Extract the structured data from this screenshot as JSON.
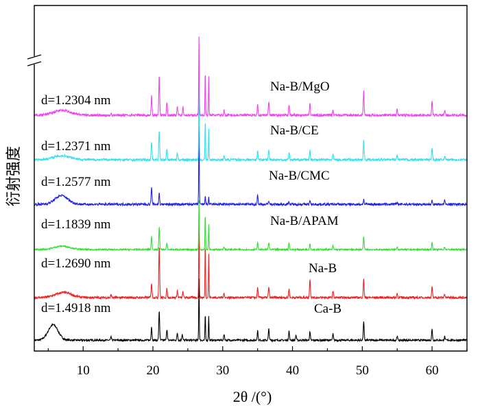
{
  "chart_data": {
    "type": "line",
    "xlabel": "2θ /(°)",
    "ylabel": "衍射强度",
    "xlim": [
      3,
      65
    ],
    "x_ticks": [
      "10",
      "20",
      "30",
      "40",
      "50",
      "60"
    ],
    "y_axis_break": true,
    "grid": false,
    "legend": "none",
    "series": [
      {
        "name": "Ca-B",
        "color": "#000000",
        "d_label": "d=1.4918 nm",
        "baseline": 0.02,
        "broad": {
          "x": 5.7,
          "h": 0.25,
          "w": 1.0
        },
        "peaks": [
          [
            14.0,
            0.05
          ],
          [
            19.8,
            0.22
          ],
          [
            20.9,
            0.48
          ],
          [
            22.0,
            0.18
          ],
          [
            23.5,
            0.12
          ],
          [
            24.2,
            0.1
          ],
          [
            26.6,
            1.0
          ],
          [
            27.5,
            0.42
          ],
          [
            28.0,
            0.4
          ],
          [
            30.2,
            0.1
          ],
          [
            35.0,
            0.16
          ],
          [
            36.6,
            0.18
          ],
          [
            39.5,
            0.15
          ],
          [
            40.5,
            0.08
          ],
          [
            42.5,
            0.13
          ],
          [
            45.8,
            0.1
          ],
          [
            50.2,
            0.3
          ],
          [
            55.0,
            0.07
          ],
          [
            60.0,
            0.18
          ],
          [
            61.8,
            0.06
          ]
        ]
      },
      {
        "name": "Na-B",
        "color": "#ee2222",
        "d_label": "d=1.2690 nm",
        "baseline": 0.0,
        "broad": {
          "x": 7.2,
          "h": 0.07,
          "w": 1.6
        },
        "peaks": [
          [
            14.0,
            0.04
          ],
          [
            19.8,
            0.2
          ],
          [
            20.9,
            0.72
          ],
          [
            22.0,
            0.12
          ],
          [
            23.5,
            0.1
          ],
          [
            24.3,
            0.08
          ],
          [
            26.6,
            1.0
          ],
          [
            27.5,
            0.75
          ],
          [
            28.0,
            0.6
          ],
          [
            30.2,
            0.06
          ],
          [
            35.0,
            0.14
          ],
          [
            36.6,
            0.14
          ],
          [
            39.5,
            0.12
          ],
          [
            42.5,
            0.26
          ],
          [
            45.8,
            0.09
          ],
          [
            50.2,
            0.25
          ],
          [
            55.0,
            0.06
          ],
          [
            60.0,
            0.15
          ],
          [
            61.8,
            0.05
          ]
        ]
      },
      {
        "name": "Na-B/APAM",
        "color": "#33dd33",
        "d_label": "d=1.1839 nm",
        "baseline": 0.0,
        "broad": {
          "x": 7.0,
          "h": 0.07,
          "w": 1.6
        },
        "peaks": [
          [
            19.8,
            0.26
          ],
          [
            20.9,
            0.46
          ],
          [
            22.0,
            0.12
          ],
          [
            26.6,
            1.0
          ],
          [
            27.5,
            0.72
          ],
          [
            28.0,
            0.5
          ],
          [
            30.2,
            0.06
          ],
          [
            35.0,
            0.14
          ],
          [
            36.6,
            0.14
          ],
          [
            39.5,
            0.14
          ],
          [
            42.5,
            0.12
          ],
          [
            45.8,
            0.08
          ],
          [
            50.2,
            0.25
          ],
          [
            55.0,
            0.06
          ],
          [
            60.0,
            0.15
          ],
          [
            61.8,
            0.05
          ]
        ]
      },
      {
        "name": "Na-B/CMC",
        "color": "#2222dd",
        "d_label": "d=1.2577 nm",
        "baseline": 0.0,
        "broad": {
          "x": 6.9,
          "h": 0.11,
          "w": 1.3
        },
        "peaks": [
          [
            19.8,
            0.22
          ],
          [
            20.9,
            0.14
          ],
          [
            26.6,
            1.0
          ],
          [
            27.5,
            0.12
          ],
          [
            28.0,
            0.09
          ],
          [
            35.0,
            0.12
          ],
          [
            36.6,
            0.05
          ],
          [
            39.5,
            0.04
          ],
          [
            42.5,
            0.04
          ],
          [
            50.2,
            0.06
          ],
          [
            55.0,
            0.03
          ],
          [
            60.0,
            0.05
          ],
          [
            61.8,
            0.05
          ]
        ]
      },
      {
        "name": "Na-B/CE",
        "color": "#33e0ee",
        "d_label": "d=1.2371 nm",
        "baseline": 0.0,
        "broad": {
          "x": 7.0,
          "h": 0.05,
          "w": 1.8
        },
        "peaks": [
          [
            19.8,
            0.22
          ],
          [
            20.9,
            0.38
          ],
          [
            22.0,
            0.14
          ],
          [
            23.5,
            0.08
          ],
          [
            26.6,
            1.0
          ],
          [
            27.5,
            0.5
          ],
          [
            28.0,
            0.38
          ],
          [
            30.2,
            0.05
          ],
          [
            35.0,
            0.12
          ],
          [
            36.6,
            0.12
          ],
          [
            39.5,
            0.1
          ],
          [
            42.5,
            0.12
          ],
          [
            45.8,
            0.07
          ],
          [
            50.2,
            0.25
          ],
          [
            55.0,
            0.06
          ],
          [
            60.0,
            0.15
          ],
          [
            61.8,
            0.05
          ]
        ]
      },
      {
        "name": "Na-B/MgO",
        "color": "#ee44ee",
        "d_label": "d=1.2304 nm",
        "baseline": 0.0,
        "broad": {
          "x": 7.0,
          "h": 0.06,
          "w": 1.8
        },
        "peaks": [
          [
            14.0,
            0.03
          ],
          [
            19.8,
            0.24
          ],
          [
            20.9,
            0.5
          ],
          [
            22.0,
            0.16
          ],
          [
            23.5,
            0.12
          ],
          [
            24.3,
            0.1
          ],
          [
            26.6,
            1.0
          ],
          [
            27.5,
            0.55
          ],
          [
            28.0,
            0.5
          ],
          [
            30.2,
            0.06
          ],
          [
            35.0,
            0.13
          ],
          [
            36.6,
            0.18
          ],
          [
            39.5,
            0.12
          ],
          [
            42.5,
            0.14
          ],
          [
            45.8,
            0.07
          ],
          [
            50.2,
            0.3
          ],
          [
            55.0,
            0.07
          ],
          [
            60.0,
            0.18
          ],
          [
            61.8,
            0.06
          ]
        ]
      }
    ]
  }
}
